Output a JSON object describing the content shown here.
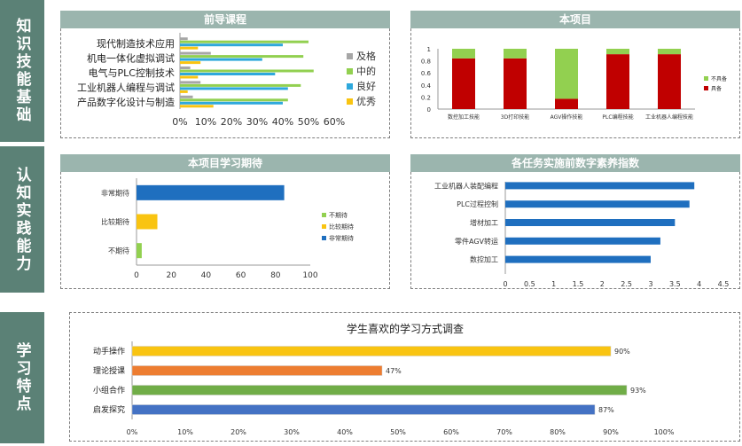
{
  "sections": [
    {
      "label": "知识技能基础"
    },
    {
      "label": "认知实践能力"
    },
    {
      "label": "学习特点"
    }
  ],
  "chart_data": [
    {
      "id": "c1",
      "type": "bar",
      "orientation": "horizontal",
      "title": "前导课程",
      "categories": [
        "现代制造技术应用",
        "机电一体化虚拟调试",
        "电气与PLC控制技术",
        "工业机器人编程与调试",
        "产品数字化设计与制造"
      ],
      "series": [
        {
          "name": "及格",
          "color": "#a6a6a6",
          "values": [
            3,
            12,
            4,
            8,
            5
          ]
        },
        {
          "name": "中的",
          "color": "#92d050",
          "values": [
            50,
            48,
            52,
            47,
            42
          ]
        },
        {
          "name": "良好",
          "color": "#2ea8dc",
          "values": [
            40,
            32,
            37,
            42,
            40
          ]
        },
        {
          "name": "优秀",
          "color": "#f9c411",
          "values": [
            7,
            8,
            7,
            3,
            13
          ]
        }
      ],
      "xlim": [
        0,
        60
      ],
      "xticks": [
        "0%",
        "10%",
        "20%",
        "30%",
        "40%",
        "50%",
        "60%"
      ],
      "legend": "right"
    },
    {
      "id": "c2",
      "type": "bar",
      "stacked": true,
      "title": "本项目",
      "categories": [
        "数控加工技能",
        "3D打印技能",
        "AGV操作技能",
        "PLC编程技能",
        "工业机器人编程技能"
      ],
      "series": [
        {
          "name": "具备",
          "color": "#c00000",
          "values": [
            0.84,
            0.84,
            0.17,
            0.91,
            0.91
          ]
        },
        {
          "name": "不具备",
          "color": "#92d050",
          "values": [
            0.16,
            0.16,
            0.83,
            0.09,
            0.09
          ]
        }
      ],
      "ylim": [
        0,
        1
      ],
      "yticks": [
        "0",
        "0.2",
        "0.4",
        "0.6",
        "0.8",
        "1"
      ],
      "legend": "right"
    },
    {
      "id": "c3",
      "type": "bar",
      "orientation": "horizontal",
      "title": "本项目学习期待",
      "categories": [
        "非常期待",
        "比较期待",
        "不期待"
      ],
      "values": [
        85,
        12,
        3
      ],
      "colors": [
        "#1f6fbf",
        "#f9c411",
        "#92d050"
      ],
      "xlim": [
        0,
        100
      ],
      "xticks": [
        "0",
        "20",
        "40",
        "60",
        "80",
        "100"
      ],
      "legend_entries": [
        "不期待",
        "比较期待",
        "非常期待"
      ],
      "legend": "right"
    },
    {
      "id": "c4",
      "type": "bar",
      "orientation": "horizontal",
      "title": "各任务实施前数字素养指数",
      "categories": [
        "工业机器人装配编程",
        "PLC过程控制",
        "增材加工",
        "零件AGV转运",
        "数控加工"
      ],
      "values": [
        3.9,
        3.8,
        3.5,
        3.2,
        3.0
      ],
      "color": "#1f6fbf",
      "xlim": [
        0,
        4.5
      ],
      "xticks": [
        "0",
        "0.5",
        "1",
        "1.5",
        "2",
        "2.5",
        "3",
        "3.5",
        "4",
        "4.5"
      ]
    },
    {
      "id": "c5",
      "type": "bar",
      "orientation": "horizontal",
      "title": "学生喜欢的学习方式调查",
      "categories": [
        "动手操作",
        "理论授课",
        "小组合作",
        "启发探究"
      ],
      "values": [
        90,
        47,
        93,
        87
      ],
      "labels": [
        "90%",
        "47%",
        "93%",
        "87%"
      ],
      "colors": [
        "#f9c411",
        "#ed7d31",
        "#70ad47",
        "#4472c4"
      ],
      "xlim": [
        0,
        100
      ],
      "xticks": [
        "0%",
        "10%",
        "20%",
        "30%",
        "40%",
        "50%",
        "60%",
        "70%",
        "80%",
        "90%",
        "100%"
      ]
    }
  ]
}
